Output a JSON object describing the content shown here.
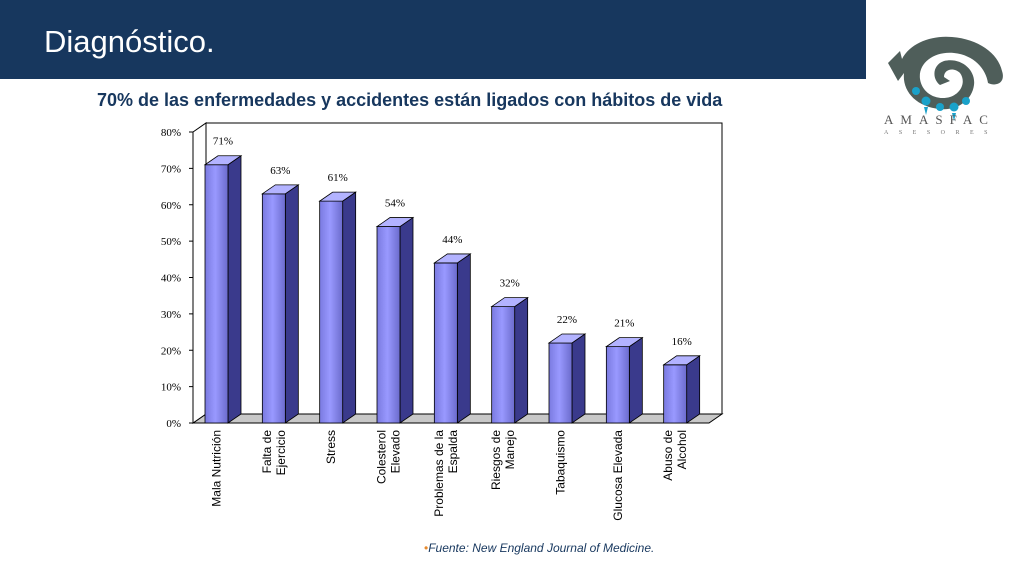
{
  "slide": {
    "title": "Diagnóstico.",
    "subtitle": "70% de las enfermedades y accidentes están ligados con hábitos de vida"
  },
  "logo": {
    "name": "AMASFAC",
    "sub": "ASESORES",
    "colors": {
      "spiral": "#4f5e5a",
      "drops": "#1aa1c9"
    }
  },
  "source": {
    "bullet": "•",
    "text": "Fuente:  New England Journal of Medicine."
  },
  "chart_data": {
    "type": "bar",
    "categories": [
      [
        "Mala Nutrición"
      ],
      [
        "Falta de",
        "Ejercicio"
      ],
      [
        "Stress"
      ],
      [
        "Colesterol",
        "Elevado"
      ],
      [
        "Problemas de la",
        "Espalda"
      ],
      [
        "Riesgos de",
        "Manejo"
      ],
      [
        "Tabaquismo"
      ],
      [
        "Glucosa Elevada"
      ],
      [
        "Abuso de",
        "Alcohol"
      ]
    ],
    "values": [
      71,
      63,
      61,
      54,
      44,
      32,
      22,
      21,
      16
    ],
    "data_labels": [
      "71%",
      "63%",
      "61%",
      "54%",
      "44%",
      "32%",
      "22%",
      "21%",
      "16%"
    ],
    "y_ticks": [
      "0%",
      "10%",
      "20%",
      "30%",
      "40%",
      "50%",
      "60%",
      "70%",
      "80%"
    ],
    "ylim": [
      0,
      80
    ],
    "bar_color": "#9999ff"
  }
}
